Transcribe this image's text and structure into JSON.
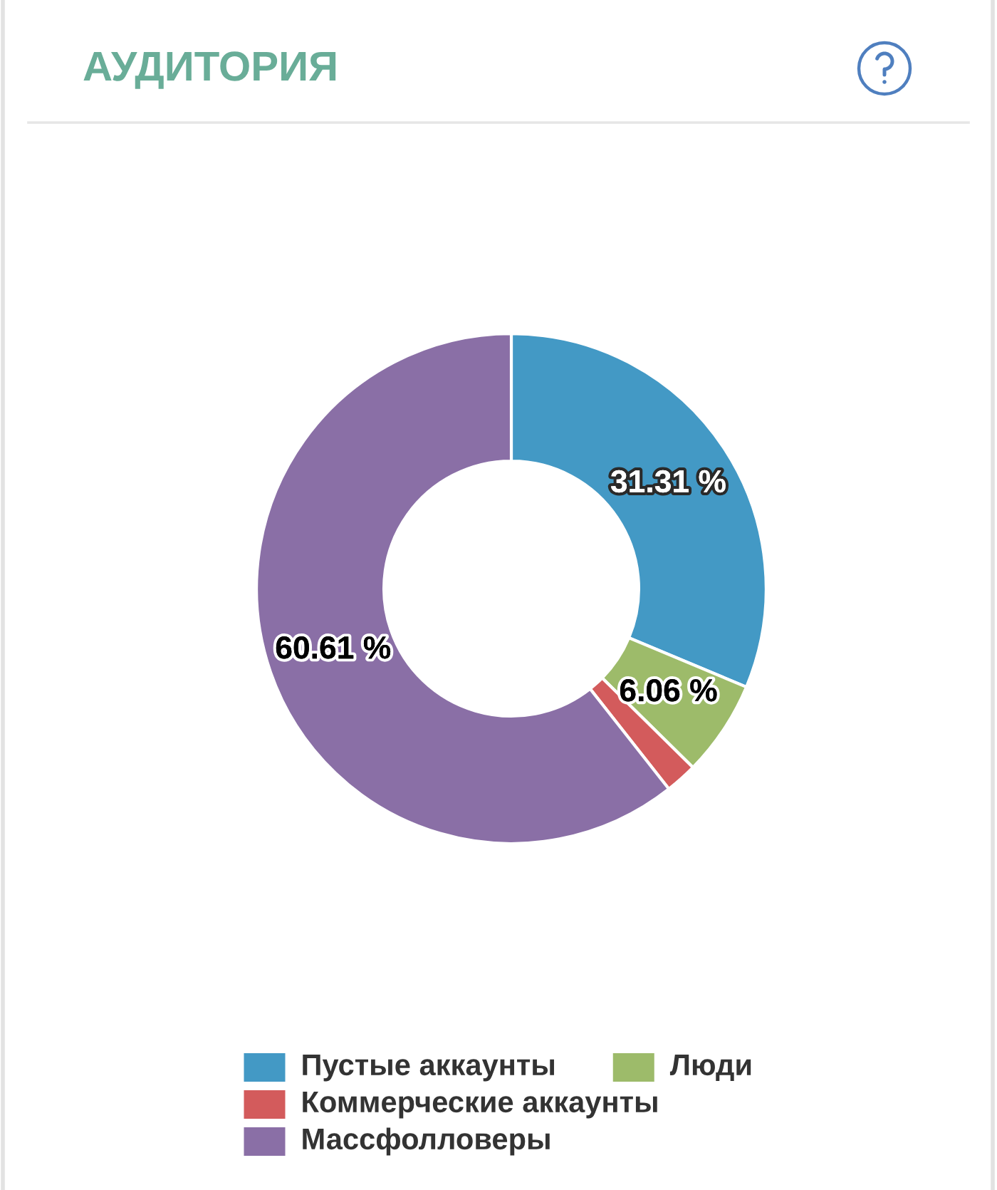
{
  "chart_data": {
    "type": "donut",
    "title": "АУДИТОРИЯ",
    "categories": [
      "Пустые аккаунты",
      "Люди",
      "Коммерческие аккаунты",
      "Массфолловеры"
    ],
    "values": [
      31.31,
      6.06,
      2.02,
      60.61
    ],
    "colors": [
      "#4399c5",
      "#9dbb6a",
      "#d35b5c",
      "#8a6fa6"
    ],
    "value_labels": [
      "31.31 %",
      "6.06 %",
      null,
      "60.61 %"
    ],
    "legend": "bottom"
  }
}
